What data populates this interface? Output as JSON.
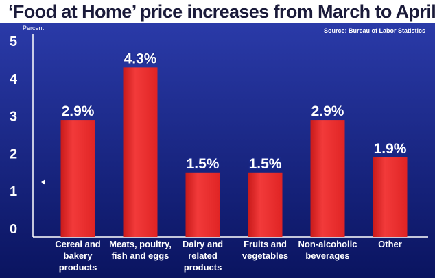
{
  "chart_data": {
    "type": "bar",
    "title": "‘Food at Home’ price increases from March to April",
    "source": "Source: Bureau of Labor Statistics",
    "ylabel": "Percent",
    "ylim": [
      0,
      5
    ],
    "yticks": [
      "0",
      "1",
      "2",
      "3",
      "4",
      "5"
    ],
    "categories": [
      [
        "Cereal and",
        "bakery",
        "products"
      ],
      [
        "Meats, poultry,",
        "fish and eggs"
      ],
      [
        "Dairy and",
        "related",
        "products"
      ],
      [
        "Fruits and",
        "vegetables"
      ],
      [
        "Non-alcoholic",
        "beverages"
      ],
      [
        "Other"
      ]
    ],
    "values": [
      2.9,
      4.3,
      1.5,
      1.5,
      2.9,
      1.9
    ],
    "value_labels": [
      "2.9%",
      "4.3%",
      "1.5%",
      "1.5%",
      "2.9%",
      "1.9%"
    ],
    "grid": false,
    "colors": {
      "bar": "#ee2e2e",
      "background_top": "#2a3aa8",
      "background_bottom": "#0a1460",
      "text": "#ffffff",
      "title": "#1b1b3a"
    }
  }
}
